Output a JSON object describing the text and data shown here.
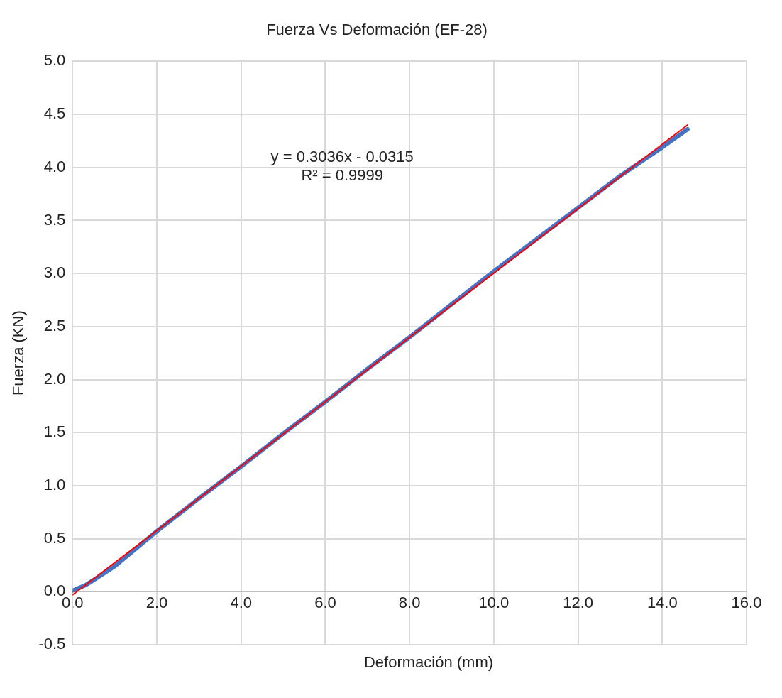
{
  "chart_data": {
    "type": "line",
    "title": "Fuerza Vs Deformación (EF-28)",
    "xlabel": "Deformación (mm)",
    "ylabel": "Fuerza (KN)",
    "xlim": [
      0,
      16
    ],
    "xticks": [
      {
        "value": 0,
        "label": "0.0"
      },
      {
        "value": 2,
        "label": "2.0"
      },
      {
        "value": 4,
        "label": "4.0"
      },
      {
        "value": 6,
        "label": "6.0"
      },
      {
        "value": 8,
        "label": "8.0"
      },
      {
        "value": 10,
        "label": "10.0"
      },
      {
        "value": 12,
        "label": "12.0"
      },
      {
        "value": 14,
        "label": "14.0"
      },
      {
        "value": 16,
        "label": "16.0"
      }
    ],
    "ylim": [
      -0.5,
      5
    ],
    "yticks": [
      {
        "value": -0.5,
        "label": "-0.5"
      },
      {
        "value": 0,
        "label": "0.0"
      },
      {
        "value": 0.5,
        "label": "0.5"
      },
      {
        "value": 1,
        "label": "1.0"
      },
      {
        "value": 1.5,
        "label": "1.5"
      },
      {
        "value": 2,
        "label": "2.0"
      },
      {
        "value": 2.5,
        "label": "2.5"
      },
      {
        "value": 3,
        "label": "3.0"
      },
      {
        "value": 3.5,
        "label": "3.5"
      },
      {
        "value": 4,
        "label": "4.0"
      },
      {
        "value": 4.5,
        "label": "4.5"
      },
      {
        "value": 5,
        "label": "5.0"
      }
    ],
    "grid": true,
    "legend": false,
    "marker": "none",
    "line_style": "solid",
    "annotations": [
      "y = 0.3036x - 0.0315",
      "R² = 0.9999"
    ],
    "series": [
      {
        "color": "#4472c4",
        "x": [
          0,
          0.3,
          0.5,
          1,
          2,
          3,
          4,
          5,
          6,
          7,
          8,
          9,
          10,
          11,
          12,
          13,
          14,
          14.6
        ],
        "values": [
          0.01,
          0.06,
          0.11,
          0.24,
          0.57,
          0.88,
          1.18,
          1.49,
          1.79,
          2.1,
          2.4,
          2.71,
          3.02,
          3.32,
          3.62,
          3.92,
          4.19,
          4.36
        ]
      },
      {
        "type": "line",
        "color": "#ff0000",
        "x": [
          0,
          14.6
        ],
        "values": [
          -0.03,
          4.4
        ]
      }
    ]
  }
}
